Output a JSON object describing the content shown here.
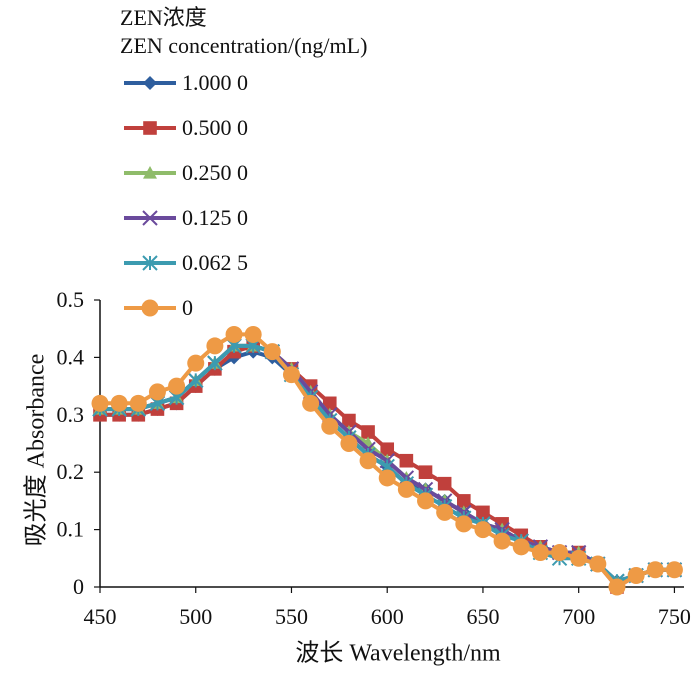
{
  "chart_data": {
    "type": "line",
    "legend_title": [
      "ZEN浓度",
      "ZEN concentration/(ng/mL)"
    ],
    "ylabel": "吸光度  Absorbance",
    "xlabel": "波长  Wavelength/nm",
    "xlim": [
      450,
      755
    ],
    "ylim": [
      0,
      0.5
    ],
    "xticks": [
      450,
      500,
      550,
      600,
      650,
      700,
      750
    ],
    "yticks": [
      0,
      0.1,
      0.2,
      0.3,
      0.4,
      0.5
    ],
    "ytick_labels": [
      "0",
      "0.1",
      "0.2",
      "0.3",
      "0.4",
      "0.5"
    ],
    "grid": false,
    "legend_position": "top-left",
    "x": [
      450,
      460,
      470,
      480,
      490,
      500,
      510,
      520,
      530,
      540,
      550,
      560,
      570,
      580,
      590,
      600,
      610,
      620,
      630,
      640,
      650,
      660,
      670,
      680,
      690,
      700,
      710,
      720,
      730,
      740,
      750
    ],
    "series": [
      {
        "name": "1.000 0",
        "color": "#2e5e9e",
        "marker": "diamond",
        "values": [
          0.3,
          0.3,
          0.3,
          0.31,
          0.32,
          0.35,
          0.38,
          0.4,
          0.41,
          0.4,
          0.37,
          0.33,
          0.29,
          0.26,
          0.23,
          0.21,
          0.18,
          0.17,
          0.15,
          0.13,
          0.11,
          0.1,
          0.08,
          0.07,
          0.06,
          0.05,
          0.04,
          0.01,
          0.02,
          0.03,
          0.03
        ]
      },
      {
        "name": "0.500 0",
        "color": "#c0403c",
        "marker": "square",
        "values": [
          0.3,
          0.3,
          0.3,
          0.31,
          0.32,
          0.35,
          0.38,
          0.41,
          0.42,
          0.41,
          0.38,
          0.35,
          0.32,
          0.29,
          0.27,
          0.24,
          0.22,
          0.2,
          0.18,
          0.15,
          0.13,
          0.11,
          0.09,
          0.07,
          0.06,
          0.06,
          0.04,
          0.0,
          0.02,
          0.03,
          0.03
        ]
      },
      {
        "name": "0.250 0",
        "color": "#8fbc6a",
        "marker": "triangle",
        "values": [
          0.31,
          0.31,
          0.31,
          0.32,
          0.33,
          0.36,
          0.39,
          0.42,
          0.42,
          0.41,
          0.38,
          0.34,
          0.3,
          0.27,
          0.25,
          0.22,
          0.19,
          0.17,
          0.15,
          0.13,
          0.11,
          0.1,
          0.08,
          0.07,
          0.06,
          0.06,
          0.04,
          0.01,
          0.02,
          0.03,
          0.03
        ]
      },
      {
        "name": "0.125 0",
        "color": "#6a4a9c",
        "marker": "x",
        "values": [
          0.31,
          0.31,
          0.31,
          0.32,
          0.33,
          0.36,
          0.39,
          0.42,
          0.42,
          0.41,
          0.38,
          0.34,
          0.3,
          0.27,
          0.24,
          0.22,
          0.19,
          0.17,
          0.15,
          0.13,
          0.11,
          0.1,
          0.08,
          0.07,
          0.06,
          0.06,
          0.04,
          0.01,
          0.02,
          0.03,
          0.03
        ]
      },
      {
        "name": "0.062 5",
        "color": "#3c9bb0",
        "marker": "asterisk",
        "values": [
          0.31,
          0.31,
          0.31,
          0.32,
          0.33,
          0.36,
          0.39,
          0.42,
          0.42,
          0.41,
          0.37,
          0.33,
          0.29,
          0.26,
          0.23,
          0.21,
          0.18,
          0.16,
          0.14,
          0.12,
          0.11,
          0.09,
          0.08,
          0.06,
          0.05,
          0.05,
          0.04,
          0.01,
          0.02,
          0.03,
          0.03
        ]
      },
      {
        "name": "0",
        "color": "#ee9a45",
        "marker": "circle",
        "values": [
          0.32,
          0.32,
          0.32,
          0.34,
          0.35,
          0.39,
          0.42,
          0.44,
          0.44,
          0.41,
          0.37,
          0.32,
          0.28,
          0.25,
          0.22,
          0.19,
          0.17,
          0.15,
          0.13,
          0.11,
          0.1,
          0.08,
          0.07,
          0.06,
          0.06,
          0.05,
          0.04,
          0.0,
          0.02,
          0.03,
          0.03
        ]
      }
    ]
  }
}
